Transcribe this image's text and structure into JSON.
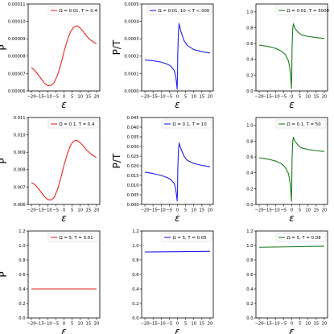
{
  "chart_data": [
    {
      "type": "line",
      "ylabel": "P",
      "xlabel": "ε",
      "xlim": [
        -22,
        22
      ],
      "ylim": [
        6e-05,
        0.00011
      ],
      "xticks": [
        -20,
        -15,
        -10,
        -5,
        0,
        5,
        10,
        15,
        20
      ],
      "xtick_labels": [
        "−20",
        "−15",
        "−10",
        "−5",
        "0",
        "5",
        "10",
        "15",
        "20"
      ],
      "yticks": [
        6e-05,
        7e-05,
        8e-05,
        9e-05,
        0.0001,
        0.00011
      ],
      "ytick_labels": [
        "0.00006",
        "0.00007",
        "0.00008",
        "0.00009",
        "0.00010",
        "0.00011"
      ],
      "legend": "Ω = 0.01, T = 0.4",
      "legend_placement": "top-right",
      "color": "#e8251f",
      "x": [
        -20,
        -18,
        -16,
        -14,
        -12,
        -10,
        -8,
        -6,
        -4,
        -2,
        0,
        2,
        4,
        6,
        8,
        10,
        12,
        14,
        16,
        18,
        20
      ],
      "y": [
        7.35e-05,
        7.18e-05,
        6.95e-05,
        6.7e-05,
        6.45e-05,
        6.3e-05,
        6.32e-05,
        6.48e-05,
        6.9e-05,
        7.5e-05,
        8.25e-05,
        8.9e-05,
        9.4e-05,
        9.68e-05,
        9.75e-05,
        9.62e-05,
        9.4e-05,
        9.15e-05,
        8.95e-05,
        8.82e-05,
        8.72e-05
      ]
    },
    {
      "type": "line",
      "ylabel": "P/T",
      "xlabel": "ε",
      "xlim": [
        -22,
        22
      ],
      "ylim": [
        0,
        0.0005
      ],
      "xticks": [
        -20,
        -15,
        -10,
        -5,
        0,
        5,
        10,
        15,
        20
      ],
      "xtick_labels": [
        "−20",
        "−15",
        "−10",
        "−5",
        "0",
        "5",
        "10",
        "15",
        "20"
      ],
      "yticks": [
        0,
        0.0001,
        0.0002,
        0.0003,
        0.0004,
        0.0005
      ],
      "ytick_labels": [
        "0.0000",
        "0.0001",
        "0.0002",
        "0.0003",
        "0.0004",
        "0.0005"
      ],
      "legend": "Ω = 0.01, 10 < T < 300",
      "legend_placement": "top-right",
      "color": "#1f1fe8",
      "x": [
        -20,
        -15,
        -10,
        -6,
        -4,
        -2,
        -1.2,
        -0.6,
        -0.2,
        0,
        0.2,
        0.6,
        1,
        2,
        4,
        6,
        10,
        15,
        20
      ],
      "y": [
        0.000178,
        0.000174,
        0.000166,
        0.000153,
        0.000142,
        0.000118,
        9e-05,
        5e-05,
        1e-05,
        8e-05,
        0.00022,
        0.00034,
        0.000388,
        0.000345,
        0.00029,
        0.000262,
        0.000238,
        0.000226,
        0.000218
      ]
    },
    {
      "type": "line",
      "ylabel": "",
      "xlabel": "ε",
      "xlim": [
        -22,
        22
      ],
      "ylim": [
        0,
        1.1
      ],
      "xticks": [
        -20,
        -15,
        -10,
        -5,
        0,
        5,
        10,
        15,
        20
      ],
      "xtick_labels": [
        "−20",
        "−15",
        "−10",
        "−5",
        "0",
        "5",
        "10",
        "15",
        "20"
      ],
      "yticks": [
        0,
        0.2,
        0.4,
        0.6,
        0.8,
        1.0
      ],
      "ytick_labels": [
        "0.0",
        "0.2",
        "0.4",
        "0.6",
        "0.8",
        "1.0"
      ],
      "legend": "Ω = 0.01, T = 5000",
      "legend_placement": "top-right",
      "color": "#1a7a1a",
      "x": [
        -20,
        -15,
        -10,
        -6,
        -4,
        -2,
        -1.2,
        -0.6,
        -0.2,
        0,
        0.2,
        0.6,
        1,
        2,
        4,
        6,
        10,
        15,
        20
      ],
      "y": [
        0.58,
        0.565,
        0.54,
        0.5,
        0.46,
        0.38,
        0.29,
        0.17,
        0.03,
        0.2,
        0.55,
        0.78,
        0.85,
        0.79,
        0.74,
        0.71,
        0.69,
        0.675,
        0.665
      ]
    },
    {
      "type": "line",
      "ylabel": "P",
      "xlabel": "ε",
      "xlim": [
        -22,
        22
      ],
      "ylim": [
        0.006,
        0.011
      ],
      "xticks": [
        -20,
        -15,
        -10,
        -5,
        0,
        5,
        10,
        15,
        20
      ],
      "xtick_labels": [
        "−20",
        "−15",
        "−10",
        "−5",
        "0",
        "5",
        "10",
        "15",
        "20"
      ],
      "yticks": [
        0.006,
        0.007,
        0.008,
        0.009,
        0.01,
        0.011
      ],
      "ytick_labels": [
        "0.006",
        "0.007",
        "0.008",
        "0.009",
        "0.010",
        "0.011"
      ],
      "legend": "Ω = 0.1, T = 0.4",
      "legend_placement": "top-right",
      "color": "#e8251f",
      "x": [
        -20,
        -18,
        -16,
        -14,
        -12,
        -10,
        -8,
        -6,
        -4,
        -2,
        0,
        2,
        4,
        6,
        8,
        10,
        12,
        14,
        16,
        18,
        20
      ],
      "y": [
        0.00725,
        0.00715,
        0.00695,
        0.0067,
        0.00645,
        0.00628,
        0.00625,
        0.0064,
        0.00685,
        0.0075,
        0.00825,
        0.0089,
        0.0094,
        0.00965,
        0.00968,
        0.00955,
        0.00935,
        0.00912,
        0.00895,
        0.0088,
        0.0087
      ]
    },
    {
      "type": "line",
      "ylabel": "P/T",
      "xlabel": "ε",
      "xlim": [
        -22,
        22
      ],
      "ylim": [
        0,
        0.045
      ],
      "xticks": [
        -20,
        -15,
        -10,
        -5,
        0,
        5,
        10,
        15,
        20
      ],
      "xtick_labels": [
        "−20",
        "−15",
        "−10",
        "−5",
        "0",
        "5",
        "10",
        "15",
        "20"
      ],
      "yticks": [
        0,
        0.005,
        0.01,
        0.015,
        0.02,
        0.025,
        0.03,
        0.035,
        0.04,
        0.045
      ],
      "ytick_labels": [
        "0.000",
        "0.005",
        "0.010",
        "0.015",
        "0.020",
        "0.025",
        "0.030",
        "0.035",
        "0.040",
        "0.045"
      ],
      "legend": "Ω = 0.1, T = 10",
      "legend_placement": "top-right",
      "color": "#1f1fe8",
      "x": [
        -20,
        -15,
        -10,
        -6,
        -4,
        -2,
        -1.2,
        -0.6,
        -0.2,
        0,
        0.2,
        0.6,
        1,
        2,
        4,
        6,
        10,
        15,
        20
      ],
      "y": [
        0.0167,
        0.016,
        0.015,
        0.0138,
        0.0128,
        0.0108,
        0.0085,
        0.005,
        0.0018,
        0.006,
        0.018,
        0.028,
        0.0318,
        0.029,
        0.025,
        0.0228,
        0.0212,
        0.0202,
        0.0195
      ]
    },
    {
      "type": "line",
      "ylabel": "",
      "xlabel": "ε",
      "xlim": [
        -22,
        22
      ],
      "ylim": [
        0,
        1.1
      ],
      "xticks": [
        -20,
        -15,
        -10,
        -5,
        0,
        5,
        10,
        15,
        20
      ],
      "xtick_labels": [
        "−20",
        "−15",
        "−10",
        "−5",
        "0",
        "5",
        "10",
        "15",
        "20"
      ],
      "yticks": [
        0,
        0.2,
        0.4,
        0.6,
        0.8,
        1.0
      ],
      "ytick_labels": [
        "0.0",
        "0.2",
        "0.4",
        "0.6",
        "0.8",
        "1.0"
      ],
      "legend": "Ω = 0.1, T = 50",
      "legend_placement": "top-right",
      "color": "#1a7a1a",
      "x": [
        -20,
        -15,
        -10,
        -6,
        -4,
        -2,
        -1.2,
        -0.6,
        -0.2,
        0,
        0.2,
        0.6,
        1,
        2,
        4,
        6,
        10,
        15,
        20
      ],
      "y": [
        0.59,
        0.575,
        0.55,
        0.51,
        0.47,
        0.39,
        0.3,
        0.18,
        0.04,
        0.22,
        0.58,
        0.79,
        0.85,
        0.8,
        0.745,
        0.715,
        0.695,
        0.68,
        0.67
      ]
    },
    {
      "type": "line",
      "ylabel": "P",
      "xlabel": "ε",
      "xlim": [
        -22,
        22
      ],
      "ylim": [
        0,
        1.2
      ],
      "xticks": [
        -20,
        -15,
        -10,
        -5,
        0,
        5,
        10,
        15,
        20
      ],
      "xtick_labels": [
        "−20",
        "−15",
        "−10",
        "−5",
        "0",
        "5",
        "10",
        "15",
        "20"
      ],
      "yticks": [
        0,
        0.2,
        0.4,
        0.6,
        0.8,
        1.0,
        1.2
      ],
      "ytick_labels": [
        "0.0",
        "0.2",
        "0.4",
        "0.6",
        "0.8",
        "1.0",
        "1.2"
      ],
      "legend": "Ω = 5, T = 0.01",
      "legend_placement": "top-right",
      "color": "#e8251f",
      "x": [
        -20,
        20
      ],
      "y": [
        0.4,
        0.4
      ]
    },
    {
      "type": "line",
      "ylabel": "",
      "xlabel": "ε",
      "xlim": [
        -22,
        22
      ],
      "ylim": [
        0,
        1.2
      ],
      "xticks": [
        -20,
        -15,
        -10,
        -5,
        0,
        5,
        10,
        15,
        20
      ],
      "xtick_labels": [
        "−20",
        "−15",
        "−10",
        "−5",
        "0",
        "5",
        "10",
        "15",
        "20"
      ],
      "yticks": [
        0,
        0.2,
        0.4,
        0.6,
        0.8,
        1.0,
        1.2
      ],
      "ytick_labels": [
        "0.0",
        "0.2",
        "0.4",
        "0.6",
        "0.8",
        "1.0",
        "1.2"
      ],
      "legend": "Ω = 5, T = 0.05",
      "legend_placement": "top-right",
      "color": "#1f1fe8",
      "x": [
        -20,
        0,
        20
      ],
      "y": [
        0.91,
        0.915,
        0.92
      ]
    },
    {
      "type": "line",
      "ylabel": "",
      "xlabel": "ε",
      "xlim": [
        -22,
        22
      ],
      "ylim": [
        0,
        1.2
      ],
      "xticks": [
        -20,
        -15,
        -10,
        -5,
        0,
        5,
        10,
        15,
        20
      ],
      "xtick_labels": [
        "−20",
        "−15",
        "−10",
        "−5",
        "0",
        "5",
        "10",
        "15",
        "20"
      ],
      "yticks": [
        0,
        0.2,
        0.4,
        0.6,
        0.8,
        1.0,
        1.2
      ],
      "ytick_labels": [
        "0.0",
        "0.2",
        "0.4",
        "0.6",
        "0.8",
        "1.0",
        "1.2"
      ],
      "legend": "Ω = 5, T = 0.08",
      "legend_placement": "top-right",
      "color": "#1a7a1a",
      "x": [
        -20,
        0,
        20
      ],
      "y": [
        0.975,
        0.982,
        0.99
      ]
    }
  ]
}
